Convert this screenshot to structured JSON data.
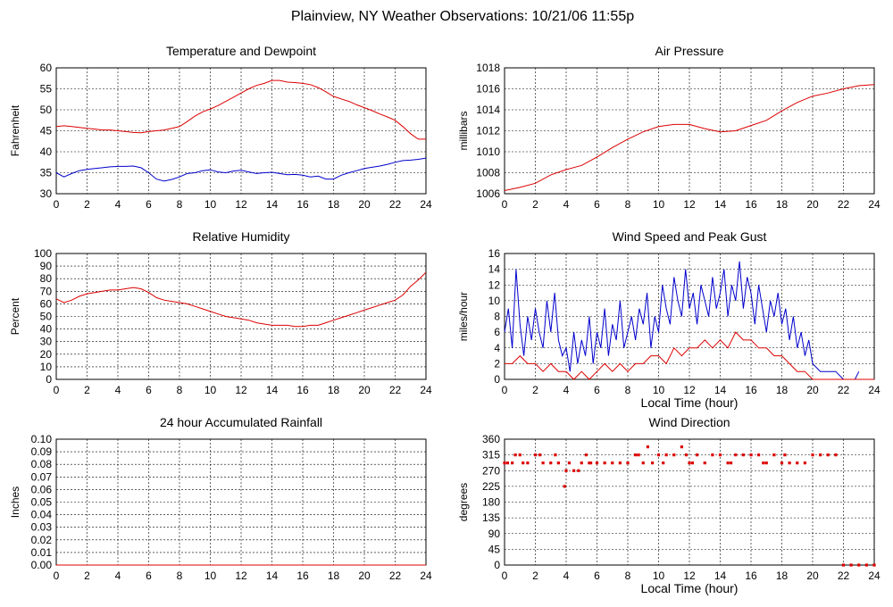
{
  "page": {
    "title": "Plainview, NY Weather Observations: 10/21/06 11:55p"
  },
  "chart_data": [
    {
      "id": "temp",
      "type": "line",
      "title": "Temperature and Dewpoint",
      "xlabel": "",
      "ylabel": "Fahrenheit",
      "xlim": [
        0,
        24
      ],
      "ylim": [
        30,
        60
      ],
      "xticks": [
        0,
        2,
        4,
        6,
        8,
        10,
        12,
        14,
        16,
        18,
        20,
        22,
        24
      ],
      "yticks": [
        30,
        35,
        40,
        45,
        50,
        55,
        60
      ],
      "grid": true,
      "series": [
        {
          "color": "#dd0000",
          "x": [
            0,
            0.5,
            1,
            1.5,
            2,
            2.5,
            3,
            3.5,
            4,
            4.5,
            5,
            5.5,
            6,
            6.5,
            7,
            7.5,
            8,
            8.5,
            9,
            9.5,
            10,
            10.5,
            11,
            11.5,
            12,
            12.5,
            13,
            13.5,
            14,
            14.5,
            15,
            15.5,
            16,
            16.5,
            17,
            17.5,
            18,
            18.5,
            19,
            19.5,
            20,
            20.5,
            21,
            21.5,
            22,
            22.5,
            23,
            23.5,
            24
          ],
          "y": [
            46,
            46.2,
            46,
            45.8,
            45.6,
            45.4,
            45.2,
            45.2,
            45,
            44.8,
            44.6,
            44.5,
            44.8,
            45,
            45.2,
            45.6,
            46,
            47.2,
            48.5,
            49.5,
            50.2,
            51,
            52,
            53,
            54,
            55,
            55.8,
            56.3,
            57,
            57,
            56.6,
            56.5,
            56.3,
            56,
            55.3,
            54.3,
            53.2,
            52.6,
            52,
            51.2,
            50.5,
            49.8,
            49,
            48.3,
            47.5,
            46,
            44.3,
            43,
            43
          ]
        },
        {
          "color": "#0000cc",
          "x": [
            0,
            0.5,
            1,
            1.5,
            2,
            2.5,
            3,
            3.5,
            4,
            4.5,
            5,
            5.5,
            6,
            6.5,
            7,
            7.5,
            8,
            8.5,
            9,
            9.5,
            10,
            10.5,
            11,
            11.5,
            12,
            12.5,
            13,
            13.5,
            14,
            14.5,
            15,
            15.5,
            16,
            16.5,
            17,
            17.5,
            18,
            18.5,
            19,
            19.5,
            20,
            20.5,
            21,
            21.5,
            22,
            22.5,
            23,
            23.5,
            24
          ],
          "y": [
            35,
            34,
            34.8,
            35.5,
            35.8,
            36,
            36.2,
            36.4,
            36.5,
            36.5,
            36.6,
            36.2,
            35,
            33.5,
            33,
            33.4,
            34,
            34.8,
            35,
            35.5,
            35.7,
            35.2,
            35,
            35.4,
            35.6,
            35.2,
            34.8,
            35,
            35.1,
            34.8,
            34.5,
            34.6,
            34.4,
            34,
            34.2,
            33.5,
            33.5,
            34.4,
            35,
            35.5,
            36,
            36.3,
            36.6,
            37,
            37.5,
            37.9,
            38,
            38.2,
            38.5
          ]
        }
      ]
    },
    {
      "id": "pressure",
      "type": "line",
      "title": "Air Pressure",
      "xlabel": "",
      "ylabel": "millibars",
      "xlim": [
        0,
        24
      ],
      "ylim": [
        1006,
        1018
      ],
      "xticks": [
        0,
        2,
        4,
        6,
        8,
        10,
        12,
        14,
        16,
        18,
        20,
        22,
        24
      ],
      "yticks": [
        1006,
        1008,
        1010,
        1012,
        1014,
        1016,
        1018
      ],
      "grid": true,
      "series": [
        {
          "color": "#dd0000",
          "x": [
            0,
            1,
            2,
            3,
            4,
            5,
            6,
            7,
            8,
            9,
            10,
            11,
            12,
            13,
            14,
            15,
            16,
            17,
            18,
            19,
            20,
            21,
            22,
            23,
            24
          ],
          "y": [
            1006.3,
            1006.6,
            1007,
            1007.8,
            1008.3,
            1008.7,
            1009.5,
            1010.4,
            1011.2,
            1011.9,
            1012.4,
            1012.6,
            1012.6,
            1012.2,
            1011.9,
            1012,
            1012.5,
            1013,
            1013.9,
            1014.7,
            1015.3,
            1015.6,
            1016,
            1016.3,
            1016.4
          ]
        }
      ]
    },
    {
      "id": "humidity",
      "type": "line",
      "title": "Relative Humidity",
      "xlabel": "",
      "ylabel": "Percent",
      "xlim": [
        0,
        24
      ],
      "ylim": [
        0,
        100
      ],
      "xticks": [
        0,
        2,
        4,
        6,
        8,
        10,
        12,
        14,
        16,
        18,
        20,
        22,
        24
      ],
      "yticks": [
        0,
        10,
        20,
        30,
        40,
        50,
        60,
        70,
        80,
        90,
        100
      ],
      "grid": true,
      "series": [
        {
          "color": "#dd0000",
          "x": [
            0,
            0.5,
            1,
            1.5,
            2,
            2.5,
            3,
            3.5,
            4,
            4.5,
            5,
            5.5,
            6,
            6.5,
            7,
            7.5,
            8,
            8.5,
            9,
            9.5,
            10,
            10.5,
            11,
            11.5,
            12,
            12.5,
            13,
            13.5,
            14,
            14.5,
            15,
            15.5,
            16,
            16.5,
            17,
            17.5,
            18,
            18.5,
            19,
            19.5,
            20,
            20.5,
            21,
            21.5,
            22,
            22.5,
            23,
            23.5,
            24
          ],
          "y": [
            64,
            61,
            63,
            66,
            68,
            69,
            70,
            71,
            71,
            72,
            73,
            72,
            69,
            65,
            63,
            62,
            61,
            60,
            58,
            56,
            54,
            52,
            50,
            49,
            48,
            47,
            45,
            44,
            43,
            43,
            43,
            42,
            42,
            43,
            43,
            45,
            47,
            49,
            51,
            53,
            55,
            57,
            59,
            61,
            63,
            67,
            74,
            79,
            85
          ]
        }
      ]
    },
    {
      "id": "wind",
      "type": "line",
      "title": "Wind Speed and Peak Gust",
      "xlabel": "Local Time (hour)",
      "ylabel": "miles/hour",
      "xlim": [
        0,
        24
      ],
      "ylim": [
        0,
        16
      ],
      "xticks": [
        0,
        2,
        4,
        6,
        8,
        10,
        12,
        14,
        16,
        18,
        20,
        22,
        24
      ],
      "yticks": [
        0,
        2,
        4,
        6,
        8,
        10,
        12,
        14,
        16
      ],
      "grid": true,
      "series": [
        {
          "color": "#0000cc",
          "x": [
            0,
            0.25,
            0.5,
            0.75,
            1,
            1.25,
            1.5,
            1.75,
            2,
            2.25,
            2.5,
            2.75,
            3,
            3.25,
            3.5,
            3.75,
            4,
            4.25,
            4.5,
            4.75,
            5,
            5.25,
            5.5,
            5.75,
            6,
            6.25,
            6.5,
            6.75,
            7,
            7.25,
            7.5,
            7.75,
            8,
            8.25,
            8.5,
            8.75,
            9,
            9.25,
            9.5,
            9.75,
            10,
            10.25,
            10.5,
            10.75,
            11,
            11.25,
            11.5,
            11.75,
            12,
            12.25,
            12.5,
            12.75,
            13,
            13.25,
            13.5,
            13.75,
            14,
            14.25,
            14.5,
            14.75,
            15,
            15.25,
            15.5,
            15.75,
            16,
            16.25,
            16.5,
            16.75,
            17,
            17.25,
            17.5,
            17.75,
            18,
            18.25,
            18.5,
            18.75,
            19,
            19.25,
            19.5,
            19.75,
            20,
            20.5,
            21,
            21.5,
            22,
            22.25,
            22.5,
            22.75,
            23
          ],
          "y": [
            6,
            9,
            4,
            14,
            7,
            3,
            8,
            5,
            9,
            6,
            4,
            10,
            6,
            11,
            5,
            3,
            4,
            1,
            6,
            2,
            5,
            3,
            8,
            2,
            6,
            4,
            9,
            3,
            7,
            5,
            10,
            4,
            6,
            8,
            5,
            9,
            7,
            11,
            4,
            8,
            6,
            12,
            9,
            7,
            13,
            10,
            8,
            14,
            9,
            11,
            7,
            12,
            10,
            8,
            13,
            9,
            11,
            14,
            8,
            12,
            10,
            15,
            9,
            13,
            11,
            7,
            12,
            9,
            6,
            10,
            8,
            11,
            7,
            9,
            5,
            8,
            4,
            6,
            3,
            5,
            2,
            1,
            1,
            1,
            0,
            0,
            0,
            0,
            1
          ]
        },
        {
          "color": "#dd0000",
          "x": [
            0,
            0.5,
            1,
            1.5,
            2,
            2.5,
            3,
            3.5,
            4,
            4.5,
            5,
            5.5,
            6,
            6.5,
            7,
            7.5,
            8,
            8.5,
            9,
            9.5,
            10,
            10.5,
            11,
            11.5,
            12,
            12.5,
            13,
            13.5,
            14,
            14.5,
            15,
            15.5,
            16,
            16.5,
            17,
            17.5,
            18,
            18.5,
            19,
            19.5,
            20,
            20.5,
            21,
            22,
            23,
            24
          ],
          "y": [
            2,
            2,
            3,
            2,
            2,
            1,
            2,
            1,
            1,
            0,
            1,
            0,
            1,
            2,
            1,
            2,
            1,
            2,
            2,
            3,
            3,
            2,
            4,
            3,
            4,
            4,
            5,
            4,
            5,
            4,
            6,
            5,
            5,
            4,
            4,
            3,
            3,
            2,
            1,
            1,
            0,
            0,
            0,
            0,
            0,
            0
          ]
        }
      ]
    },
    {
      "id": "rain",
      "type": "line",
      "title": "24 hour Accumulated Rainfall",
      "xlabel": "",
      "ylabel": "Inches",
      "xlim": [
        0,
        24
      ],
      "ylim": [
        0,
        0.1
      ],
      "xticks": [
        0,
        2,
        4,
        6,
        8,
        10,
        12,
        14,
        16,
        18,
        20,
        22,
        24
      ],
      "yticks": [
        0,
        0.01,
        0.02,
        0.03,
        0.04,
        0.05,
        0.06,
        0.07,
        0.08,
        0.09,
        0.1
      ],
      "ytick_labels": [
        "0.00",
        "0.01",
        "0.02",
        "0.03",
        "0.04",
        "0.05",
        "0.06",
        "0.07",
        "0.08",
        "0.09",
        "0.10"
      ],
      "grid": true,
      "series": [
        {
          "color": "#dd0000",
          "x": [
            0,
            24
          ],
          "y": [
            0,
            0
          ]
        }
      ]
    },
    {
      "id": "direction",
      "type": "scatter",
      "title": "Wind Direction",
      "xlabel": "Local Time (hour)",
      "ylabel": "degrees",
      "xlim": [
        0,
        24
      ],
      "ylim": [
        0,
        360
      ],
      "xticks": [
        0,
        2,
        4,
        6,
        8,
        10,
        12,
        14,
        16,
        18,
        20,
        22,
        24
      ],
      "yticks": [
        0,
        45,
        90,
        135,
        180,
        225,
        270,
        315,
        360
      ],
      "grid": true,
      "series": [
        {
          "color": "#dd0000",
          "x": [
            0,
            0.5,
            1,
            1.5,
            2,
            2.5,
            3,
            3.5,
            3.9,
            4,
            4.2,
            4.5,
            4.8,
            5,
            5.3,
            5.6,
            6,
            6.5,
            7,
            7.5,
            8,
            8.5,
            9,
            9.3,
            9.6,
            10,
            10.5,
            11,
            11.5,
            11.8,
            12,
            12.5,
            13,
            13.5,
            14,
            14.5,
            15,
            15.5,
            16,
            16.5,
            17,
            17.5,
            18,
            18.5,
            19,
            19.5,
            20,
            20.5,
            21,
            21.5,
            22,
            22.5,
            23,
            23.5,
            24,
            0.2,
            0.7,
            1.2,
            2.3,
            3.3,
            5.5,
            8.7,
            10.3,
            12.2,
            14.7,
            16.8,
            18.2
          ],
          "y": [
            292,
            292,
            315,
            292,
            315,
            292,
            292,
            292,
            225,
            270,
            292,
            270,
            270,
            292,
            315,
            292,
            292,
            292,
            292,
            292,
            292,
            315,
            292,
            338,
            292,
            315,
            315,
            315,
            338,
            315,
            292,
            315,
            292,
            315,
            315,
            292,
            315,
            315,
            315,
            315,
            292,
            315,
            292,
            292,
            292,
            292,
            315,
            315,
            315,
            315,
            0,
            0,
            0,
            0,
            0,
            292,
            315,
            292,
            315,
            315,
            292,
            315,
            292,
            292,
            292,
            292,
            315
          ]
        }
      ]
    }
  ]
}
